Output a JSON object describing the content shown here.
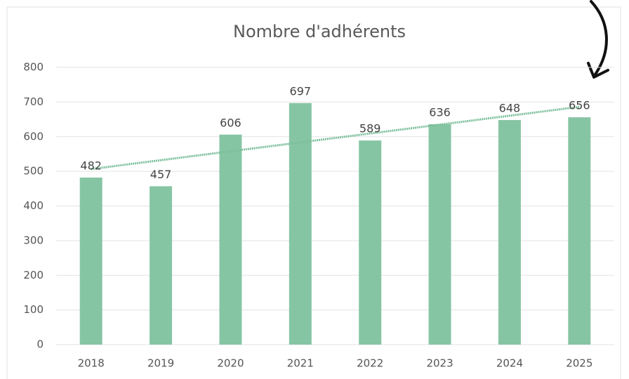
{
  "chart_data": {
    "type": "bar",
    "title": "Nombre d'adhérents",
    "categories": [
      "2018",
      "2019",
      "2020",
      "2021",
      "2022",
      "2023",
      "2024",
      "2025"
    ],
    "values": [
      482,
      457,
      606,
      697,
      589,
      636,
      648,
      656
    ],
    "color": "#86c5a4",
    "ylim": [
      0,
      800
    ],
    "yticks": [
      0,
      100,
      200,
      300,
      400,
      500,
      600,
      700,
      800
    ],
    "grid": true,
    "trendline": true,
    "trendline_color": "#7bbf9a"
  }
}
